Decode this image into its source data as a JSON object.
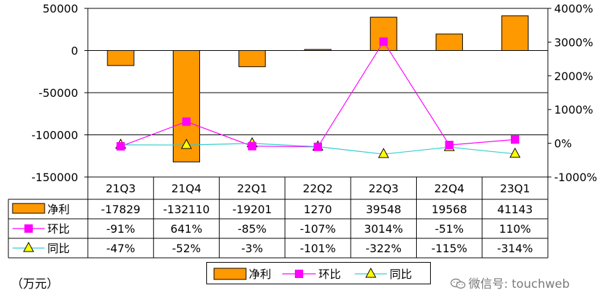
{
  "chart_data": {
    "type": "bar+line",
    "categories": [
      "21Q3",
      "21Q4",
      "22Q1",
      "22Q2",
      "22Q3",
      "22Q4",
      "23Q1"
    ],
    "series": [
      {
        "name": "净利",
        "type": "bar",
        "axis": "left",
        "values": [
          -17829,
          -132110,
          -19201,
          1270,
          39548,
          19568,
          41143
        ],
        "labels": [
          "-17829",
          "-132110",
          "-19201",
          "1270",
          "39548",
          "19568",
          "41143"
        ],
        "color": "#FF9900"
      },
      {
        "name": "环比",
        "type": "line",
        "axis": "right",
        "values": [
          -91,
          641,
          -85,
          -107,
          3014,
          -51,
          110
        ],
        "labels": [
          "-91%",
          "641%",
          "-85%",
          "-107%",
          "3014%",
          "-51%",
          "110%"
        ],
        "color": "#FF00FF"
      },
      {
        "name": "同比",
        "type": "line",
        "axis": "right",
        "values": [
          -47,
          -52,
          -3,
          -101,
          -322,
          -115,
          -314
        ],
        "labels": [
          "-47%",
          "-52%",
          "-3%",
          "-101%",
          "-322%",
          "-115%",
          "-314%"
        ],
        "color": "#33CCCC"
      }
    ],
    "left_axis": {
      "ylim": [
        -150000,
        50000
      ],
      "ticks": [
        50000,
        0,
        -50000,
        -100000,
        -150000
      ],
      "tick_labels": [
        "50000",
        "0",
        "-50000",
        "-100000",
        "-150000"
      ]
    },
    "right_axis": {
      "ylim": [
        -1000,
        4000
      ],
      "ticks": [
        4000,
        3000,
        2000,
        1000,
        0,
        -1000
      ],
      "tick_labels": [
        "4000%",
        "3000%",
        "2000%",
        "1000%",
        "0%",
        "-1000%"
      ]
    },
    "grid": true,
    "legend_position": "bottom",
    "unit_note": "（万元）"
  },
  "watermark": "微信号: touchweb",
  "colors": {
    "bar_edge": "#000000",
    "marker_edge": "#000000",
    "triangle_fill": "#FFFF00"
  }
}
